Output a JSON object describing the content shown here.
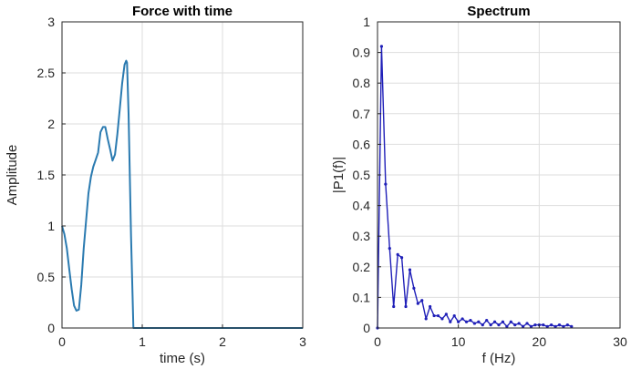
{
  "chart_data": [
    {
      "type": "line",
      "title": "Force with time",
      "xlabel": "time (s)",
      "ylabel": "Amplitude",
      "xlim": [
        0,
        3
      ],
      "ylim": [
        0,
        3
      ],
      "xticks": [
        "0",
        "1",
        "2",
        "3"
      ],
      "yticks": [
        "0",
        "0.5",
        "1",
        "1.5",
        "2",
        "2.5",
        "3"
      ],
      "grid": true,
      "color": "#2a7ab0",
      "series": [
        {
          "x": [
            0,
            0.03,
            0.06,
            0.09,
            0.12,
            0.15,
            0.18,
            0.21,
            0.24,
            0.27,
            0.3,
            0.33,
            0.36,
            0.39,
            0.42,
            0.45,
            0.48,
            0.51,
            0.54,
            0.57,
            0.6,
            0.63,
            0.66,
            0.69,
            0.72,
            0.75,
            0.78,
            0.8,
            0.81,
            0.83,
            0.86,
            0.89,
            0.95,
            3.0
          ],
          "y": [
            1.0,
            0.92,
            0.78,
            0.58,
            0.38,
            0.22,
            0.17,
            0.18,
            0.42,
            0.78,
            1.05,
            1.32,
            1.48,
            1.58,
            1.65,
            1.72,
            1.92,
            1.97,
            1.97,
            1.85,
            1.75,
            1.64,
            1.7,
            1.9,
            2.15,
            2.4,
            2.58,
            2.62,
            2.6,
            2.1,
            0.9,
            0.0,
            0.0,
            0.0
          ]
        }
      ]
    },
    {
      "type": "line",
      "title": "Spectrum",
      "xlabel": "f (Hz)",
      "ylabel": "|P1(f)|",
      "xlim": [
        0,
        30
      ],
      "ylim": [
        0,
        1
      ],
      "xticks": [
        "0",
        "10",
        "20",
        "30"
      ],
      "yticks": [
        "0",
        "0.1",
        "0.2",
        "0.3",
        "0.4",
        "0.5",
        "0.6",
        "0.7",
        "0.8",
        "0.9",
        "1"
      ],
      "grid": true,
      "color": "#1f1fb8",
      "series": [
        {
          "x": [
            0,
            0.5,
            1.0,
            1.5,
            2.0,
            2.5,
            3.0,
            3.5,
            4.0,
            4.5,
            5.0,
            5.5,
            6.0,
            6.5,
            7.0,
            7.5,
            8.0,
            8.5,
            9.0,
            9.5,
            10.0,
            10.5,
            11.0,
            11.5,
            12.0,
            12.5,
            13.0,
            13.5,
            14.0,
            14.5,
            15.0,
            15.5,
            16.0,
            16.5,
            17.0,
            17.5,
            18.0,
            18.5,
            19.0,
            19.5,
            20.0,
            20.5,
            21.0,
            21.5,
            22.0,
            22.5,
            23.0,
            23.5,
            24.0
          ],
          "y": [
            0.0,
            0.92,
            0.47,
            0.26,
            0.07,
            0.24,
            0.23,
            0.07,
            0.19,
            0.13,
            0.08,
            0.09,
            0.03,
            0.07,
            0.04,
            0.04,
            0.03,
            0.045,
            0.02,
            0.04,
            0.02,
            0.03,
            0.02,
            0.025,
            0.015,
            0.02,
            0.01,
            0.025,
            0.01,
            0.02,
            0.01,
            0.02,
            0.005,
            0.02,
            0.01,
            0.015,
            0.005,
            0.015,
            0.005,
            0.01,
            0.01,
            0.01,
            0.005,
            0.01,
            0.005,
            0.01,
            0.005,
            0.01,
            0.005
          ]
        }
      ]
    }
  ]
}
